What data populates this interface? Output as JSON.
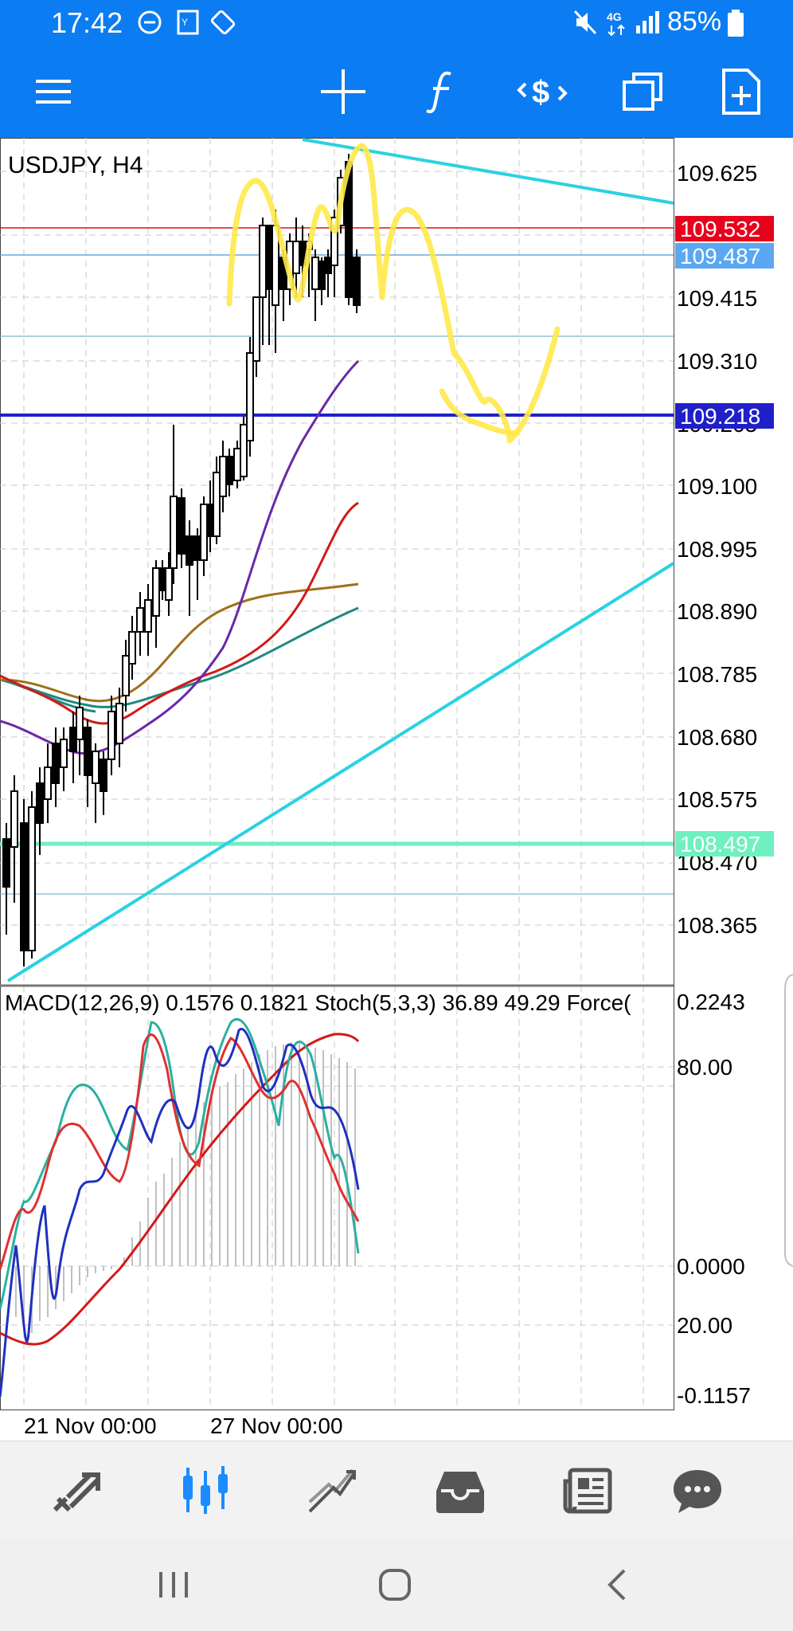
{
  "status_bar": {
    "time": "17:42",
    "battery": "85%",
    "network": "4G"
  },
  "toolbar": {
    "icons": [
      "menu-icon",
      "crosshair-icon",
      "function-icon",
      "trade-icon",
      "windows-icon",
      "new-document-icon"
    ]
  },
  "chart": {
    "symbol": "USDJPY, H4",
    "price_ticks": [
      "109.625",
      "109.415",
      "109.310",
      "109.205",
      "109.100",
      "108.995",
      "108.890",
      "108.785",
      "108.680",
      "108.575",
      "108.470",
      "108.365"
    ],
    "price_tags": {
      "bid": "109.532",
      "ask": "109.487",
      "level_blue": "109.218",
      "level_green": "108.497"
    },
    "time_labels": [
      "21 Nov 00:00",
      "27 Nov 00:00"
    ],
    "colors": {
      "bid_tag": "#e8001c",
      "ask_tag": "#5aa7f2",
      "level_blue": "#2020c8",
      "level_green": "#6ff0c0",
      "trendline": "#2ad2e0",
      "annotation": "#ffe94a"
    }
  },
  "indicator": {
    "macd": "MACD(12,26,9) 0.1576 0.1821",
    "stoch": "Stoch(5,3,3) 36.89 49.29",
    "force": "Force(",
    "ticks": [
      "0.2243",
      "80.00",
      "0.0000",
      "20.00",
      "-0.1157"
    ]
  },
  "bottom_nav": {
    "items": [
      "quotes-icon",
      "chart-icon",
      "trade-icon",
      "history-icon",
      "news-icon",
      "chat-icon"
    ],
    "active": "chart-icon",
    "active_color": "#1a8cff"
  },
  "system_nav": {
    "items": [
      "recents-icon",
      "home-icon",
      "back-icon"
    ]
  }
}
